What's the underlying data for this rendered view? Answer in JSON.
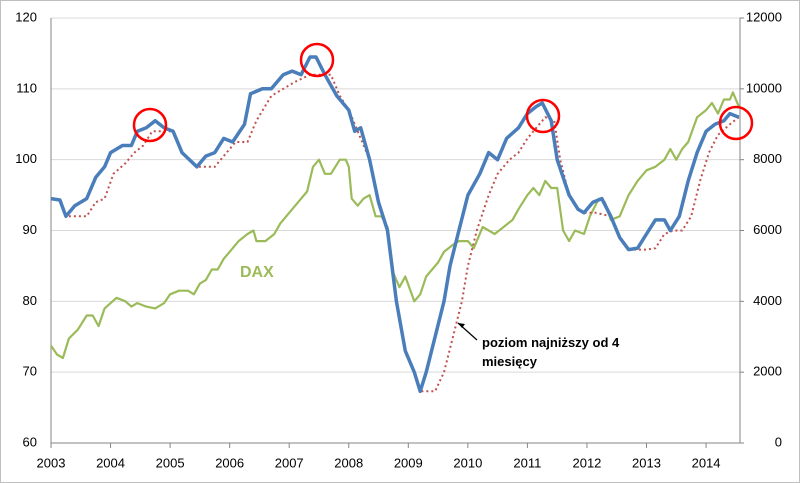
{
  "chart_data": {
    "type": "line",
    "xlim": [
      2003,
      2014.57
    ],
    "xticks": [
      2003,
      2004,
      2005,
      2006,
      2007,
      2008,
      2009,
      2010,
      2011,
      2012,
      2013,
      2014
    ],
    "ylim": [
      60,
      120
    ],
    "yticks": [
      60,
      70,
      80,
      90,
      100,
      110,
      120
    ],
    "y2lim": [
      0,
      12000
    ],
    "y2ticks": [
      0,
      2000,
      4000,
      6000,
      8000,
      10000,
      12000
    ],
    "grid": true,
    "annotations": [
      "DAX",
      "poziom najniższy od 4 miesięcy"
    ],
    "series": [
      {
        "color": "#4a7ebb",
        "x": [
          2003.0,
          2003.15,
          2003.25,
          2003.4,
          2003.6,
          2003.75,
          2003.9,
          2004.0,
          2004.2,
          2004.35,
          2004.45,
          2004.6,
          2004.75,
          2004.9,
          2005.05,
          2005.2,
          2005.45,
          2005.6,
          2005.75,
          2005.9,
          2006.05,
          2006.25,
          2006.35,
          2006.55,
          2006.7,
          2006.9,
          2007.05,
          2007.2,
          2007.35,
          2007.45,
          2007.6,
          2007.8,
          2008.0,
          2008.1,
          2008.2,
          2008.35,
          2008.5,
          2008.65,
          2008.8,
          2008.95,
          2009.1,
          2009.2,
          2009.3,
          2009.45,
          2009.6,
          2009.7,
          2009.85,
          2010.0,
          2010.2,
          2010.35,
          2010.5,
          2010.65,
          2010.85,
          2011.0,
          2011.15,
          2011.25,
          2011.4,
          2011.5,
          2011.7,
          2011.85,
          2011.95,
          2012.1,
          2012.25,
          2012.4,
          2012.55,
          2012.7,
          2012.85,
          2013.0,
          2013.15,
          2013.3,
          2013.4,
          2013.55,
          2013.7,
          2013.85,
          2014.0,
          2014.15,
          2014.3,
          2014.4,
          2014.55
        ],
        "values": [
          94.5,
          94.3,
          92,
          93.5,
          94.5,
          97.5,
          99,
          101,
          102,
          102,
          104,
          104.5,
          105.5,
          104.5,
          104,
          101,
          99,
          100.5,
          101,
          103,
          102.5,
          105,
          109.3,
          110,
          110,
          112,
          112.5,
          112,
          114.5,
          114.5,
          112,
          109,
          107,
          104,
          104.5,
          100,
          94,
          90,
          80,
          73,
          70,
          67.3,
          70,
          75,
          80,
          85,
          90,
          95,
          98,
          101,
          100,
          103,
          104.5,
          106.5,
          107.5,
          108,
          105.5,
          100,
          95,
          93,
          92.5,
          94,
          94.5,
          92,
          89,
          87.3,
          87.5,
          89.5,
          91.5,
          91.5,
          90,
          92,
          97,
          101,
          104,
          105,
          105.5,
          106.5,
          106
        ]
      },
      {
        "color": "#c0504d",
        "x": [
          2003.3,
          2003.6,
          2003.75,
          2003.9,
          2004.05,
          2004.25,
          2004.4,
          2004.55,
          2004.7,
          2004.9,
          2005.05,
          2005.2,
          2005.45,
          2005.75,
          2005.9,
          2006.1,
          2006.3,
          2006.45,
          2006.7,
          2006.9,
          2007.1,
          2007.35,
          2007.55,
          2007.7,
          2007.85,
          2008.0,
          2008.15,
          2008.35,
          2008.5,
          2008.65,
          2008.8,
          2008.95,
          2009.1,
          2009.2,
          2009.45,
          2009.6,
          2009.75,
          2009.9,
          2010.0,
          2010.15,
          2010.35,
          2010.5,
          2010.7,
          2010.85,
          2011.0,
          2011.15,
          2011.3,
          2011.45,
          2011.55,
          2011.7,
          2011.85,
          2011.95,
          2012.15,
          2012.4,
          2012.55,
          2012.7,
          2013.0,
          2013.15,
          2013.3,
          2013.45,
          2013.6,
          2013.75,
          2013.9,
          2014.05,
          2014.2,
          2014.4,
          2014.55
        ],
        "values": [
          92,
          92,
          94,
          94.5,
          98,
          99.5,
          101,
          102,
          104,
          104,
          104,
          101,
          99,
          99,
          100.5,
          102.5,
          102.5,
          105.5,
          109,
          110,
          111,
          112,
          112,
          112,
          109,
          107,
          104,
          100,
          94,
          90,
          80,
          73,
          70,
          67.3,
          67.3,
          70,
          75,
          80,
          85,
          90,
          95,
          98,
          100,
          101,
          103,
          104.5,
          106,
          105.5,
          100,
          95,
          93,
          92.5,
          92.5,
          92,
          89,
          87.3,
          87.3,
          87.5,
          89.5,
          90,
          90,
          92,
          97,
          101,
          103.5,
          105,
          106
        ]
      },
      {
        "color": "#9bbb59",
        "axis": "y2",
        "x": [
          2003.0,
          2003.1,
          2003.2,
          2003.3,
          2003.45,
          2003.6,
          2003.7,
          2003.8,
          2003.9,
          2004.0,
          2004.1,
          2004.25,
          2004.35,
          2004.45,
          2004.6,
          2004.75,
          2004.9,
          2005.0,
          2005.15,
          2005.3,
          2005.4,
          2005.5,
          2005.6,
          2005.7,
          2005.8,
          2005.9,
          2006.0,
          2006.15,
          2006.3,
          2006.4,
          2006.45,
          2006.6,
          2006.75,
          2006.85,
          2007.0,
          2007.15,
          2007.3,
          2007.4,
          2007.5,
          2007.6,
          2007.7,
          2007.85,
          2007.95,
          2008.0,
          2008.05,
          2008.15,
          2008.25,
          2008.35,
          2008.45,
          2008.55,
          2008.65,
          2008.75,
          2008.85,
          2008.95,
          2009.1,
          2009.2,
          2009.3,
          2009.4,
          2009.5,
          2009.6,
          2009.75,
          2009.85,
          2010.0,
          2010.1,
          2010.25,
          2010.35,
          2010.45,
          2010.6,
          2010.75,
          2010.85,
          2011.0,
          2011.1,
          2011.2,
          2011.3,
          2011.4,
          2011.5,
          2011.6,
          2011.7,
          2011.8,
          2011.95,
          2012.05,
          2012.2,
          2012.3,
          2012.4,
          2012.55,
          2012.7,
          2012.85,
          2013.0,
          2013.15,
          2013.3,
          2013.4,
          2013.5,
          2013.6,
          2013.7,
          2013.85,
          2014.0,
          2014.1,
          2014.2,
          2014.3,
          2014.4,
          2014.45,
          2014.55
        ],
        "values": [
          2750,
          2500,
          2400,
          2950,
          3200,
          3600,
          3600,
          3300,
          3800,
          3950,
          4100,
          4000,
          3850,
          3950,
          3850,
          3800,
          3950,
          4200,
          4300,
          4300,
          4200,
          4500,
          4600,
          4900,
          4900,
          5200,
          5400,
          5700,
          5900,
          6000,
          5700,
          5700,
          5900,
          6200,
          6500,
          6800,
          7100,
          7800,
          8000,
          7600,
          7600,
          8000,
          8000,
          7800,
          6900,
          6700,
          6900,
          7000,
          6400,
          6400,
          6100,
          4800,
          4400,
          4700,
          4000,
          4200,
          4700,
          4900,
          5100,
          5400,
          5600,
          5700,
          5700,
          5500,
          6100,
          6000,
          5900,
          6100,
          6300,
          6600,
          7000,
          7200,
          7000,
          7400,
          7200,
          7200,
          6000,
          5700,
          6000,
          5900,
          6400,
          6900,
          6800,
          6300,
          6400,
          7000,
          7400,
          7700,
          7800,
          8000,
          8300,
          8000,
          8300,
          8500,
          9200,
          9400,
          9600,
          9300,
          9700,
          9700,
          9900,
          9500
        ]
      }
    ]
  }
}
